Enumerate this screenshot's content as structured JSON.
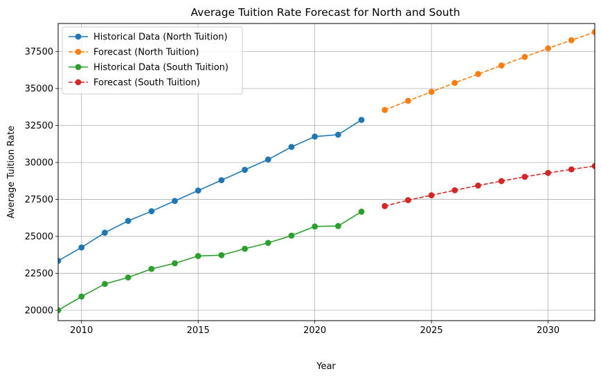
{
  "chart_data": {
    "type": "line",
    "title": "Average Tuition Rate Forecast for North and South",
    "xlabel": "Year",
    "ylabel": "Average Tuition Rate",
    "xlim": [
      2009,
      2032
    ],
    "ylim": [
      19300,
      39400
    ],
    "xticks": [
      2010,
      2015,
      2020,
      2025,
      2030
    ],
    "yticks": [
      20000,
      22500,
      25000,
      27500,
      30000,
      32500,
      35000,
      37500
    ],
    "grid": true,
    "legend_position": "top-left",
    "series": [
      {
        "name": "Historical Data (North Tuition)",
        "color": "#1f77b4",
        "style": "solid",
        "x": [
          2009,
          2010,
          2011,
          2012,
          2013,
          2014,
          2015,
          2016,
          2017,
          2018,
          2019,
          2020,
          2021,
          2022
        ],
        "values": [
          23350,
          24250,
          25250,
          26050,
          26700,
          27400,
          28100,
          28800,
          29500,
          30200,
          31050,
          31750,
          31880,
          32880
        ]
      },
      {
        "name": "Forecast (North Tuition)",
        "color": "#ff7f0e",
        "style": "dashed",
        "x": [
          2023,
          2024,
          2025,
          2026,
          2027,
          2028,
          2029,
          2030,
          2031,
          2032
        ],
        "values": [
          33550,
          34170,
          34780,
          35380,
          35980,
          36560,
          37140,
          37720,
          38270,
          38820
        ]
      },
      {
        "name": "Historical Data (South Tuition)",
        "color": "#2ca02c",
        "style": "solid",
        "x": [
          2009,
          2010,
          2011,
          2012,
          2013,
          2014,
          2015,
          2016,
          2017,
          2018,
          2019,
          2020,
          2021,
          2022
        ],
        "values": [
          20000,
          20930,
          21780,
          22220,
          22800,
          23180,
          23670,
          23730,
          24160,
          24560,
          25050,
          25670,
          25700,
          26670
        ]
      },
      {
        "name": "Forecast (South Tuition)",
        "color": "#d62728",
        "style": "dashed",
        "x": [
          2023,
          2024,
          2025,
          2026,
          2027,
          2028,
          2029,
          2030,
          2031,
          2032
        ],
        "values": [
          27050,
          27450,
          27780,
          28120,
          28440,
          28740,
          29030,
          29290,
          29530,
          29760
        ]
      }
    ]
  }
}
